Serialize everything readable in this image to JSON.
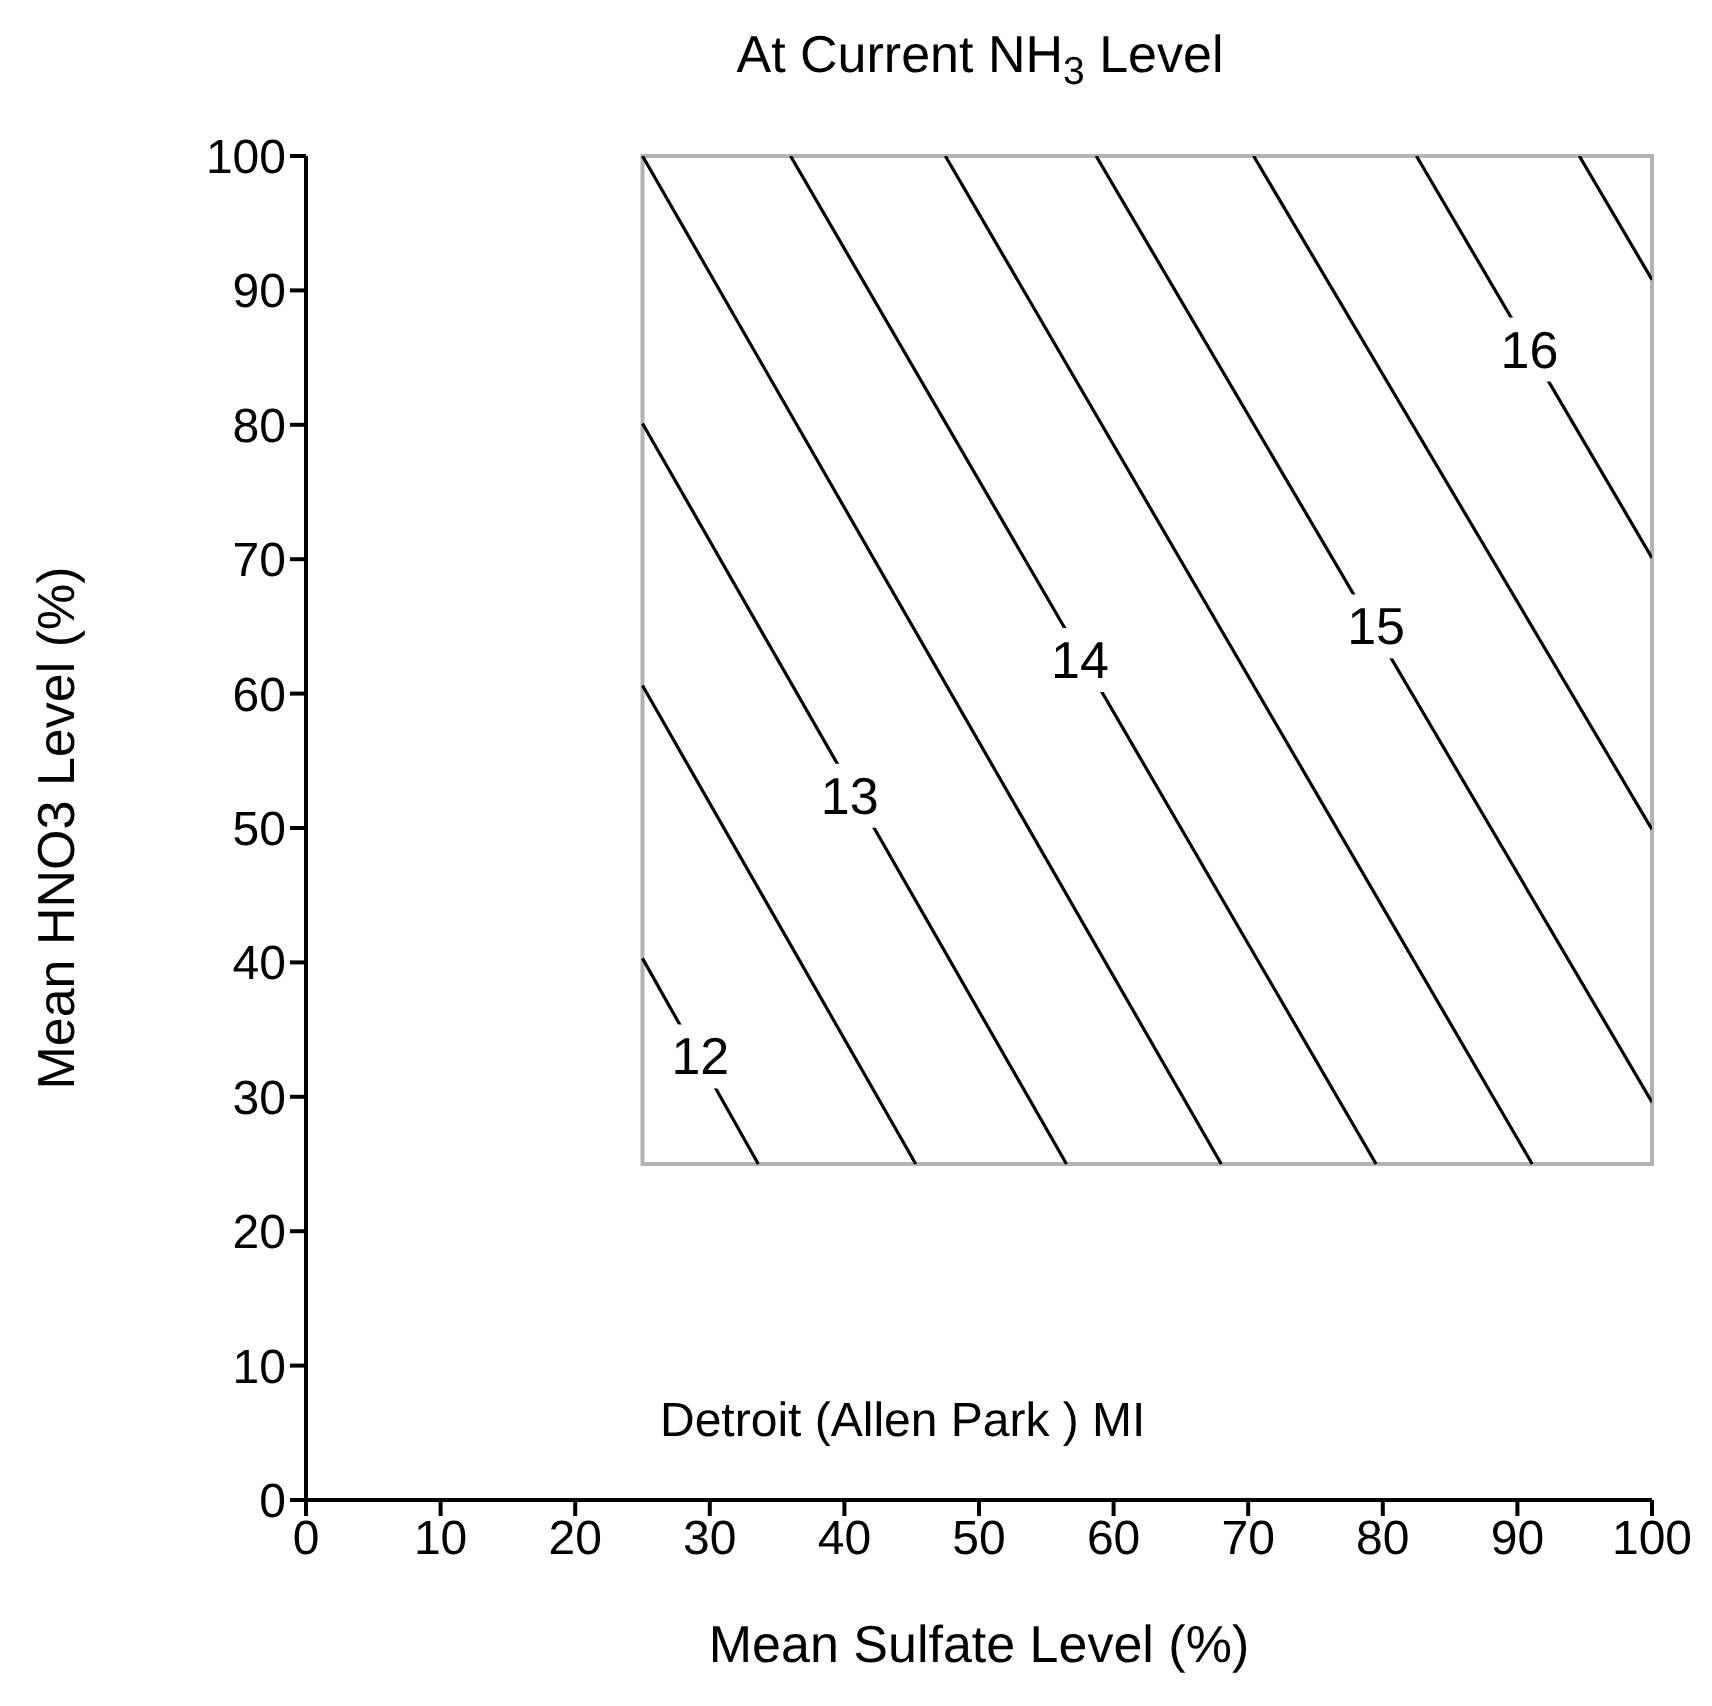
{
  "chart_data": {
    "type": "line",
    "title": "At Current NH$_{3}$ Level",
    "xlabel": "Mean Sulfate Level (%)",
    "ylabel": "Mean HNO3 Level (%)",
    "xlim": [
      0,
      100
    ],
    "ylim": [
      0,
      100
    ],
    "xticks": [
      0,
      10,
      20,
      30,
      40,
      50,
      60,
      70,
      80,
      90,
      100
    ],
    "yticks": [
      0,
      10,
      20,
      30,
      40,
      50,
      60,
      70,
      80,
      90,
      100
    ],
    "grid": false,
    "marker": "none",
    "line_style": "solid",
    "series": [
      {
        "color": "#000000",
        "x": [
          25,
          33.6
        ],
        "values": [
          40.3,
          25
        ]
      },
      {
        "color": "#000000",
        "x": [
          25,
          45.3
        ],
        "values": [
          60.6,
          25
        ]
      },
      {
        "color": "#000000",
        "x": [
          25,
          56.5
        ],
        "values": [
          80.1,
          25
        ]
      },
      {
        "color": "#000000",
        "x": [
          25,
          68
        ],
        "values": [
          100,
          25
        ]
      },
      {
        "color": "#000000",
        "x": [
          36,
          79.5
        ],
        "values": [
          100,
          25
        ]
      },
      {
        "color": "#000000",
        "x": [
          47.5,
          91.1
        ],
        "values": [
          100,
          25
        ]
      },
      {
        "color": "#000000",
        "x": [
          58.7,
          100
        ],
        "values": [
          100,
          29.6
        ]
      },
      {
        "color": "#000000",
        "x": [
          70.4,
          100
        ],
        "values": [
          100,
          49.9
        ]
      },
      {
        "color": "#000000",
        "x": [
          82.5,
          100
        ],
        "values": [
          100,
          70.1
        ]
      },
      {
        "color": "#000000",
        "x": [
          94.6,
          100
        ],
        "values": [
          100,
          90.8
        ]
      }
    ],
    "annotations": [
      {
        "text": "12",
        "x": 29.3,
        "y": 33
      },
      {
        "text": "13",
        "x": 40.4,
        "y": 52.4
      },
      {
        "text": "14",
        "x": 57.5,
        "y": 62.5
      },
      {
        "text": "15",
        "x": 79.5,
        "y": 65
      },
      {
        "text": "16",
        "x": 90.9,
        "y": 85.6
      },
      "Detroit (Allen Park ) MI"
    ]
  }
}
